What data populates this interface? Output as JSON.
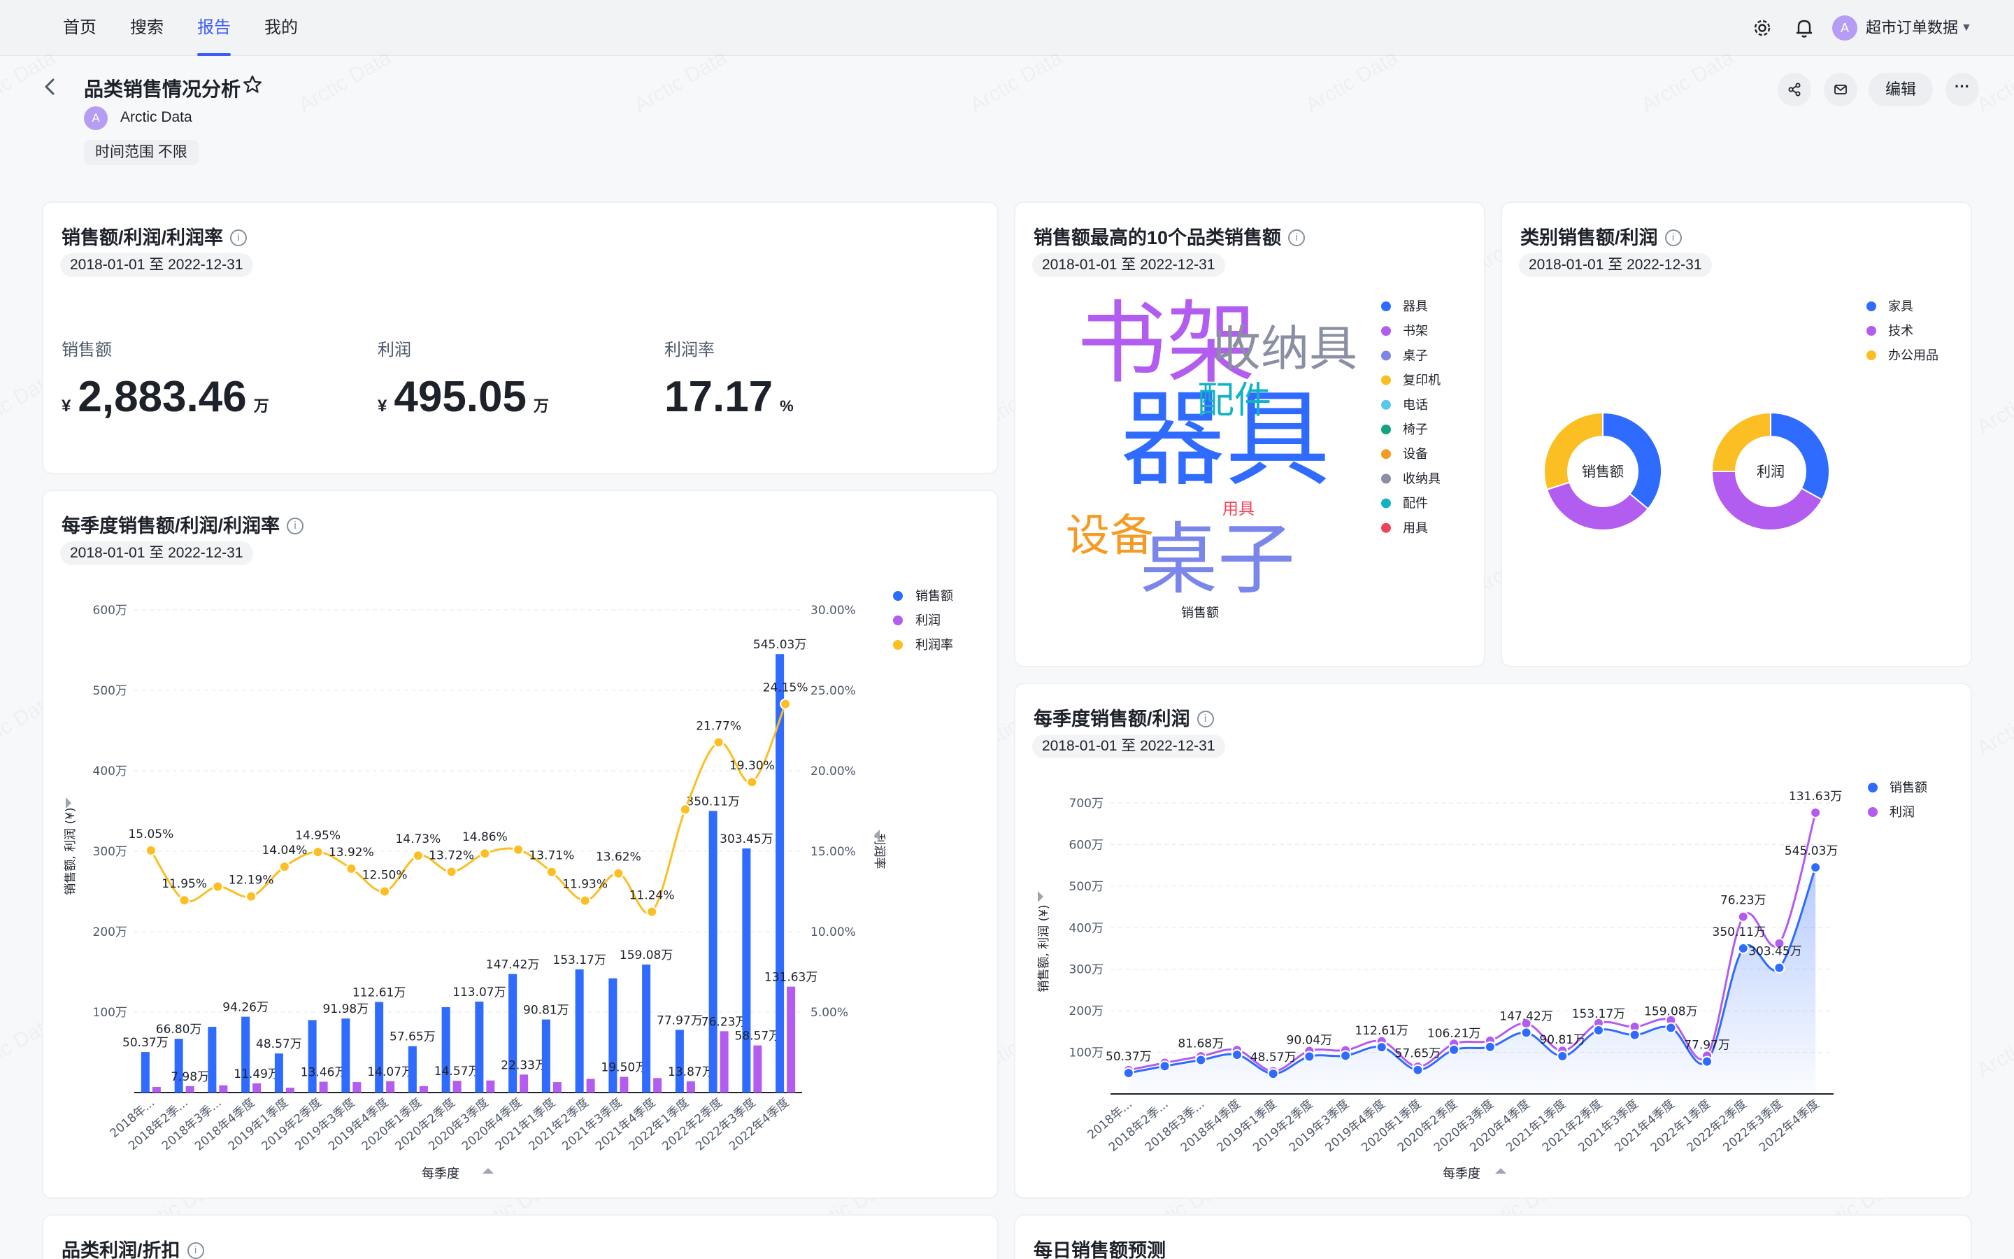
{
  "nav": {
    "items": [
      {
        "label": "首页",
        "active": false
      },
      {
        "label": "搜索",
        "active": false
      },
      {
        "label": "报告",
        "active": true
      },
      {
        "label": "我的",
        "active": false
      }
    ],
    "settings_icon": "gear-icon",
    "bell_icon": "bell-icon",
    "user": {
      "avatar": "A",
      "name": "超市订单数据"
    }
  },
  "page": {
    "title": "品类销售情况分析",
    "owner_avatar": "A",
    "owner": "Arctic Data",
    "time_range_tag": "时间范围 不限",
    "actions": {
      "share_icon": "share-icon",
      "mail_icon": "mail-icon",
      "edit": "编辑",
      "more": "···"
    },
    "watermark": "Arctic Data"
  },
  "kpi_card": {
    "title": "销售额/利润/利润率",
    "date": "2018-01-01 至 2022-12-31",
    "items": [
      {
        "label": "销售额",
        "currency": "¥",
        "value": "2,883.46",
        "unit": "万"
      },
      {
        "label": "利润",
        "currency": "¥",
        "value": "495.05",
        "unit": "万"
      },
      {
        "label": "利润率",
        "currency": "",
        "value": "17.17",
        "unit": "%"
      }
    ]
  },
  "wordcloud_card": {
    "title": "销售额最高的10个品类销售额",
    "date": "2018-01-01 至 2022-12-31",
    "xlabel": "销售额"
  },
  "donut_card": {
    "title": "类别销售额/利润",
    "date": "2018-01-01 至 2022-12-31"
  },
  "quarter_card": {
    "title": "每季度销售额/利润/利润率",
    "date": "2018-01-01 至 2022-12-31",
    "xlabel": "每季度"
  },
  "area_card": {
    "title": "每季度销售额/利润",
    "date": "2018-01-01 至 2022-12-31",
    "xlabel": "每季度"
  },
  "bottom_left": {
    "title": "品类利润/折扣"
  },
  "bottom_right": {
    "title": "每日销售额预测"
  },
  "colors": {
    "blue": "#2f6bff",
    "purple": "#b35cf0",
    "yellow": "#fbbf24",
    "accent": "#3b5bfd"
  },
  "chart_data": [
    {
      "type": "bar",
      "title": "每季度销售额/利润/利润率",
      "xlabel": "每季度",
      "ylabel": "销售额, 利润 (¥)",
      "y2label": "利润率",
      "ylim": [
        0,
        600
      ],
      "y2lim": [
        0,
        30
      ],
      "yticks": [
        "100万",
        "200万",
        "300万",
        "400万",
        "500万",
        "600万"
      ],
      "y2ticks": [
        "5.00%",
        "10.00%",
        "15.00%",
        "20.00%",
        "25.00%",
        "30.00%"
      ],
      "legend": "top-right",
      "categories": [
        "2018年...",
        "2018年2季...",
        "2018年3季...",
        "2018年4季度",
        "2019年1季度",
        "2019年2季度",
        "2019年3季度",
        "2019年4季度",
        "2020年1季度",
        "2020年2季度",
        "2020年3季度",
        "2020年4季度",
        "2021年1季度",
        "2021年2季度",
        "2021年3季度",
        "2021年4季度",
        "2022年1季度",
        "2022年2季度",
        "2022年3季度",
        "2022年4季度"
      ],
      "series": [
        {
          "name": "销售额",
          "kind": "bar",
          "values": [
            50.37,
            66.8,
            81.68,
            94.26,
            48.57,
            90.04,
            91.98,
            112.61,
            57.65,
            106.21,
            113.07,
            147.42,
            90.81,
            153.17,
            142.0,
            159.08,
            77.97,
            350.11,
            303.45,
            545.03
          ],
          "labels": [
            "50.37万",
            "66.80万",
            "",
            "94.26万",
            "48.57万",
            "",
            "91.98万",
            "112.61万",
            "57.65万",
            "",
            "113.07万",
            "147.42万",
            "90.81万",
            "153.17万",
            "",
            "159.08万",
            "77.97万",
            "350.11万",
            "303.45万",
            "545.03万"
          ]
        },
        {
          "name": "利润",
          "kind": "bar",
          "values": [
            7.0,
            7.98,
            9.0,
            11.49,
            6.0,
            13.46,
            13.0,
            14.07,
            8.0,
            14.57,
            15.0,
            22.33,
            13.0,
            17.0,
            19.5,
            18.0,
            13.87,
            76.23,
            58.57,
            131.63
          ],
          "labels": [
            "",
            "7.98万",
            "",
            "11.49万",
            "",
            "13.46万",
            "",
            "14.07万",
            "",
            "14.57万",
            "",
            "22.33万",
            "",
            "",
            "19.50万",
            "",
            "13.87万",
            "76.23万",
            "58.57万",
            "131.63万"
          ]
        },
        {
          "name": "利润率",
          "kind": "line",
          "axis": "right",
          "values": [
            15.05,
            11.95,
            12.8,
            12.19,
            14.04,
            14.95,
            13.92,
            12.5,
            14.73,
            13.72,
            14.86,
            15.1,
            13.71,
            11.93,
            13.62,
            11.24,
            17.6,
            21.77,
            19.3,
            24.15
          ],
          "labels": [
            "15.05%",
            "11.95%",
            "",
            "12.19%",
            "14.04%",
            "14.95%",
            "13.92%",
            "12.50%",
            "14.73%",
            "13.72%",
            "14.86%",
            "",
            "13.71%",
            "11.93%",
            "13.62%",
            "11.24%",
            "",
            "21.77%",
            "19.30%",
            "24.15%"
          ]
        }
      ]
    },
    {
      "type": "area",
      "title": "每季度销售额/利润",
      "xlabel": "每季度",
      "ylabel": "销售额, 利润 (¥)",
      "ylim": [
        0,
        700
      ],
      "yticks": [
        "100万",
        "200万",
        "300万",
        "400万",
        "500万",
        "600万",
        "700万"
      ],
      "legend": "top-right",
      "categories": [
        "2018年...",
        "2018年2季...",
        "2018年3季...",
        "2018年4季度",
        "2019年1季度",
        "2019年2季度",
        "2019年3季度",
        "2019年4季度",
        "2020年1季度",
        "2020年2季度",
        "2020年3季度",
        "2020年4季度",
        "2021年1季度",
        "2021年2季度",
        "2021年3季度",
        "2021年4季度",
        "2022年1季度",
        "2022年2季度",
        "2022年3季度",
        "2022年4季度"
      ],
      "series": [
        {
          "name": "销售额",
          "values": [
            50.37,
            66.8,
            81.68,
            94.26,
            48.57,
            90.04,
            91.98,
            112.61,
            57.65,
            106.21,
            113.07,
            147.42,
            90.81,
            153.17,
            142.0,
            159.08,
            77.97,
            350.11,
            303.45,
            545.03
          ],
          "labels": [
            "50.37万",
            "",
            "81.68万",
            "",
            "48.57万",
            "90.04万",
            "",
            "112.61万",
            "57.65万",
            "106.21万",
            "",
            "147.42万",
            "90.81万",
            "153.17万",
            "",
            "159.08万",
            "77.97万",
            "350.11万",
            "303.45万",
            "545.03万"
          ]
        },
        {
          "name": "利润",
          "values": [
            57.35,
            74.78,
            90.68,
            105.75,
            54.57,
            103.5,
            104.98,
            126.68,
            65.65,
            120.78,
            128.07,
            169.75,
            103.81,
            170.17,
            161.5,
            177.08,
            91.84,
            426.34,
            362.02,
            676.66
          ],
          "labels": [
            "",
            "",
            "",
            "",
            "",
            "",
            "",
            "",
            "",
            "",
            "",
            "",
            "",
            "",
            "",
            "",
            "",
            "76.23万",
            "",
            "131.63万"
          ]
        }
      ]
    },
    {
      "type": "wordcloud",
      "title": "销售额最高的10个品类销售额",
      "xlabel": "销售额",
      "legend": "right",
      "categories": [
        "器具",
        "书架",
        "桌子",
        "复印机",
        "电话",
        "椅子",
        "设备",
        "收纳具",
        "配件",
        "用具"
      ],
      "colors": [
        "#2f6bff",
        "#b35cf0",
        "#7b86ea",
        "#fbbf24",
        "#5ac8e8",
        "#14a37f",
        "#f59a23",
        "#8a8fa3",
        "#14b1c4",
        "#f0435a"
      ],
      "values": [
        10,
        8.5,
        7.4,
        0,
        0,
        0,
        4.2,
        4.6,
        3.5,
        1.5
      ]
    },
    {
      "type": "pie",
      "title": "类别销售额/利润",
      "legend": "top-right",
      "categories": [
        "家具",
        "技术",
        "办公用品"
      ],
      "colors": [
        "#2f6bff",
        "#b35cf0",
        "#fbbf24"
      ],
      "series": [
        {
          "name": "销售额",
          "values": [
            36,
            34,
            30
          ]
        },
        {
          "name": "利润",
          "values": [
            33,
            42,
            25
          ]
        }
      ]
    }
  ]
}
